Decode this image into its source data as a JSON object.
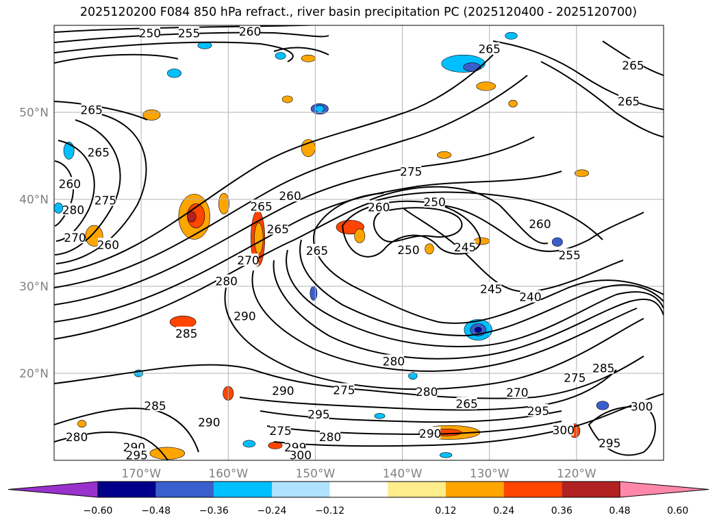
{
  "title": "2025120200 F084 850 hPa refract., river basin precipitation PC (2025120400 - 2025120700)",
  "map": {
    "lon_range": [
      -180,
      -110
    ],
    "lat_range": [
      10,
      60
    ],
    "lon_ticks": [
      {
        "lon": -170,
        "label": "170°W"
      },
      {
        "lon": -160,
        "label": "160°W"
      },
      {
        "lon": -150,
        "label": "150°W"
      },
      {
        "lon": -140,
        "label": "140°W"
      },
      {
        "lon": -130,
        "label": "130°W"
      },
      {
        "lon": -120,
        "label": "120°W"
      }
    ],
    "lat_ticks": [
      {
        "lat": 50,
        "label": "50°N"
      },
      {
        "lat": 40,
        "label": "40°N"
      },
      {
        "lat": 30,
        "label": "30°N"
      },
      {
        "lat": 20,
        "label": "20°N"
      }
    ],
    "contour_labels": [
      {
        "text": "250",
        "lon": -169.0,
        "lat": 59.0
      },
      {
        "text": "255",
        "lon": -164.5,
        "lat": 59.0
      },
      {
        "text": "260",
        "lon": -157.5,
        "lat": 59.2
      },
      {
        "text": "265",
        "lon": -130.0,
        "lat": 57.2
      },
      {
        "text": "265",
        "lon": -113.5,
        "lat": 55.3
      },
      {
        "text": "265",
        "lon": -114.0,
        "lat": 51.2
      },
      {
        "text": "265",
        "lon": -175.7,
        "lat": 50.2
      },
      {
        "text": "265",
        "lon": -174.9,
        "lat": 45.3
      },
      {
        "text": "260",
        "lon": -178.2,
        "lat": 41.7
      },
      {
        "text": "280",
        "lon": -177.8,
        "lat": 38.7
      },
      {
        "text": "275",
        "lon": -174.1,
        "lat": 39.8
      },
      {
        "text": "270",
        "lon": -177.6,
        "lat": 35.5
      },
      {
        "text": "260",
        "lon": -173.8,
        "lat": 34.7
      },
      {
        "text": "265",
        "lon": -156.2,
        "lat": 39.1
      },
      {
        "text": "260",
        "lon": -152.9,
        "lat": 40.3
      },
      {
        "text": "275",
        "lon": -139.0,
        "lat": 43.1
      },
      {
        "text": "265",
        "lon": -154.3,
        "lat": 36.5
      },
      {
        "text": "270",
        "lon": -157.7,
        "lat": 32.9
      },
      {
        "text": "280",
        "lon": -160.2,
        "lat": 30.5
      },
      {
        "text": "260",
        "lon": -142.7,
        "lat": 39.0
      },
      {
        "text": "250",
        "lon": -136.3,
        "lat": 39.6
      },
      {
        "text": "250",
        "lon": -139.3,
        "lat": 34.1
      },
      {
        "text": "245",
        "lon": -132.8,
        "lat": 34.4
      },
      {
        "text": "260",
        "lon": -124.2,
        "lat": 37.1
      },
      {
        "text": "255",
        "lon": -120.8,
        "lat": 33.5
      },
      {
        "text": "265",
        "lon": -149.8,
        "lat": 34.0
      },
      {
        "text": "245",
        "lon": -129.8,
        "lat": 29.6
      },
      {
        "text": "240",
        "lon": -125.3,
        "lat": 28.7
      },
      {
        "text": "290",
        "lon": -158.1,
        "lat": 26.5
      },
      {
        "text": "285",
        "lon": -164.8,
        "lat": 24.5
      },
      {
        "text": "280",
        "lon": -141.0,
        "lat": 21.3
      },
      {
        "text": "290",
        "lon": -153.7,
        "lat": 17.9
      },
      {
        "text": "275",
        "lon": -146.7,
        "lat": 18.0
      },
      {
        "text": "280",
        "lon": -137.2,
        "lat": 17.8
      },
      {
        "text": "265",
        "lon": -132.6,
        "lat": 16.4
      },
      {
        "text": "270",
        "lon": -126.8,
        "lat": 17.7
      },
      {
        "text": "295",
        "lon": -149.6,
        "lat": 15.2
      },
      {
        "text": "285",
        "lon": -168.4,
        "lat": 16.2
      },
      {
        "text": "290",
        "lon": -162.2,
        "lat": 14.3
      },
      {
        "text": "275",
        "lon": -154.0,
        "lat": 13.3
      },
      {
        "text": "280",
        "lon": -148.3,
        "lat": 12.6
      },
      {
        "text": "290",
        "lon": -136.8,
        "lat": 13.0
      },
      {
        "text": "295",
        "lon": -124.4,
        "lat": 15.6
      },
      {
        "text": "300",
        "lon": -121.5,
        "lat": 13.4
      },
      {
        "text": "275",
        "lon": -120.2,
        "lat": 19.4
      },
      {
        "text": "285",
        "lon": -116.9,
        "lat": 20.5
      },
      {
        "text": "300",
        "lon": -112.5,
        "lat": 16.1
      },
      {
        "text": "295",
        "lon": -116.2,
        "lat": 11.9
      },
      {
        "text": "280",
        "lon": -177.4,
        "lat": 12.6
      },
      {
        "text": "290",
        "lon": -170.8,
        "lat": 11.4
      },
      {
        "text": "295",
        "lon": -170.5,
        "lat": 10.5
      },
      {
        "text": "299",
        "lon": -152.3,
        "lat": 11.4
      },
      {
        "text": "300",
        "lon": -151.7,
        "lat": 10.5
      }
    ],
    "contour_color": "#000000",
    "grid_color": "#b0b0b0",
    "label_color": "#808080"
  },
  "colorbar": {
    "under_color": "#9932cc",
    "over_color": "#ff88aa",
    "bins": [
      {
        "from": -0.6,
        "to": -0.48,
        "color": "#00008b"
      },
      {
        "from": -0.48,
        "to": -0.36,
        "color": "#3a5fcd"
      },
      {
        "from": -0.36,
        "to": -0.24,
        "color": "#00bfff"
      },
      {
        "from": -0.24,
        "to": -0.12,
        "color": "#b0e2ff"
      },
      {
        "from": -0.12,
        "to": 0.12,
        "color": "#ffffff"
      },
      {
        "from": 0.12,
        "to": 0.24,
        "color": "#ffec8b"
      },
      {
        "from": 0.24,
        "to": 0.36,
        "color": "#ffa500"
      },
      {
        "from": 0.36,
        "to": 0.48,
        "color": "#ff4500"
      },
      {
        "from": 0.48,
        "to": 0.6,
        "color": "#b22222"
      }
    ],
    "tick_labels": [
      "−0.60",
      "−0.48",
      "−0.36",
      "−0.24",
      "−0.12",
      "0.12",
      "0.24",
      "0.36",
      "0.48",
      "0.60"
    ]
  },
  "precip_patches": [
    {
      "lon": -163.9,
      "lat": 38.0,
      "r": 1.8,
      "ry": 2.6,
      "level": 0.3
    },
    {
      "lon": -163.7,
      "lat": 38.1,
      "r": 1.0,
      "ry": 1.4,
      "level": 0.42
    },
    {
      "lon": -164.2,
      "lat": 38.0,
      "r": 0.5,
      "ry": 0.6,
      "level": 0.55
    },
    {
      "lon": -160.5,
      "lat": 39.5,
      "r": 0.6,
      "ry": 1.2,
      "level": 0.3
    },
    {
      "lon": -156.6,
      "lat": 35.5,
      "r": 0.8,
      "ry": 3.2,
      "level": 0.42
    },
    {
      "lon": -156.5,
      "lat": 35.5,
      "r": 0.5,
      "ry": 1.8,
      "level": 0.3
    },
    {
      "lon": -146.0,
      "lat": 36.8,
      "r": 1.6,
      "ry": 0.8,
      "level": 0.42
    },
    {
      "lon": -144.9,
      "lat": 35.8,
      "r": 0.6,
      "ry": 0.8,
      "level": 0.3
    },
    {
      "lon": -136.9,
      "lat": 34.3,
      "r": 0.5,
      "ry": 0.6,
      "level": 0.3
    },
    {
      "lon": -130.9,
      "lat": 35.2,
      "r": 0.9,
      "ry": 0.4,
      "level": 0.3
    },
    {
      "lon": -165.2,
      "lat": 25.9,
      "r": 1.5,
      "ry": 0.7,
      "level": 0.42
    },
    {
      "lon": -175.4,
      "lat": 35.8,
      "r": 1.0,
      "ry": 1.2,
      "level": 0.3
    },
    {
      "lon": -168.8,
      "lat": 49.7,
      "r": 1.0,
      "ry": 0.6,
      "level": 0.3
    },
    {
      "lon": -150.8,
      "lat": 45.9,
      "r": 0.8,
      "ry": 1.0,
      "level": 0.3
    },
    {
      "lon": -153.2,
      "lat": 51.5,
      "r": 0.6,
      "ry": 0.4,
      "level": 0.3
    },
    {
      "lon": -130.4,
      "lat": 53.0,
      "r": 1.1,
      "ry": 0.5,
      "level": 0.3
    },
    {
      "lon": -135.2,
      "lat": 45.1,
      "r": 0.8,
      "ry": 0.4,
      "level": 0.3
    },
    {
      "lon": -119.4,
      "lat": 43.0,
      "r": 0.8,
      "ry": 0.4,
      "level": 0.3
    },
    {
      "lon": -127.3,
      "lat": 51.0,
      "r": 0.5,
      "ry": 0.4,
      "level": 0.3
    },
    {
      "lon": -134.6,
      "lat": 13.2,
      "r": 3.5,
      "ry": 0.8,
      "level": 0.3
    },
    {
      "lon": -134.9,
      "lat": 13.2,
      "r": 1.7,
      "ry": 0.4,
      "level": 0.42
    },
    {
      "lon": -120.2,
      "lat": 13.4,
      "r": 0.6,
      "ry": 0.8,
      "level": 0.42
    },
    {
      "lon": -167.0,
      "lat": 10.8,
      "r": 2.0,
      "ry": 0.7,
      "level": 0.3
    },
    {
      "lon": -160.0,
      "lat": 17.7,
      "r": 0.6,
      "ry": 0.8,
      "level": 0.42
    },
    {
      "lon": -154.6,
      "lat": 11.7,
      "r": 0.8,
      "ry": 0.4,
      "level": 0.42
    },
    {
      "lon": -176.8,
      "lat": 14.2,
      "r": 0.5,
      "ry": 0.4,
      "level": 0.3
    },
    {
      "lon": -150.8,
      "lat": 56.2,
      "r": 0.8,
      "ry": 0.4,
      "level": 0.3
    },
    {
      "lon": -149.5,
      "lat": 50.4,
      "r": 1.0,
      "ry": 0.6,
      "level": -0.42
    },
    {
      "lon": -149.5,
      "lat": 50.4,
      "r": 0.5,
      "ry": 0.4,
      "level": -0.3
    },
    {
      "lon": -133.0,
      "lat": 55.6,
      "r": 2.5,
      "ry": 1.0,
      "level": -0.3
    },
    {
      "lon": -132.0,
      "lat": 55.2,
      "r": 1.0,
      "ry": 0.5,
      "level": -0.42
    },
    {
      "lon": -131.3,
      "lat": 25.0,
      "r": 1.6,
      "ry": 1.2,
      "level": -0.3
    },
    {
      "lon": -131.3,
      "lat": 25.0,
      "r": 0.9,
      "ry": 0.7,
      "level": -0.42
    },
    {
      "lon": -131.3,
      "lat": 25.0,
      "r": 0.4,
      "ry": 0.3,
      "level": -0.55
    },
    {
      "lon": -178.3,
      "lat": 45.6,
      "r": 0.6,
      "ry": 1.0,
      "level": -0.3
    },
    {
      "lon": -179.5,
      "lat": 39.0,
      "r": 0.5,
      "ry": 0.6,
      "level": -0.3
    },
    {
      "lon": -166.2,
      "lat": 54.5,
      "r": 0.8,
      "ry": 0.5,
      "level": -0.3
    },
    {
      "lon": -162.7,
      "lat": 57.7,
      "r": 0.8,
      "ry": 0.4,
      "level": -0.3
    },
    {
      "lon": -154.0,
      "lat": 56.5,
      "r": 0.6,
      "ry": 0.4,
      "level": -0.3
    },
    {
      "lon": -150.2,
      "lat": 29.2,
      "r": 0.4,
      "ry": 0.8,
      "level": -0.42
    },
    {
      "lon": -122.2,
      "lat": 35.1,
      "r": 0.6,
      "ry": 0.5,
      "level": -0.42
    },
    {
      "lon": -127.5,
      "lat": 58.8,
      "r": 0.7,
      "ry": 0.4,
      "level": -0.3
    },
    {
      "lon": -138.8,
      "lat": 19.7,
      "r": 0.5,
      "ry": 0.4,
      "level": -0.3
    },
    {
      "lon": -117.0,
      "lat": 16.3,
      "r": 0.7,
      "ry": 0.5,
      "level": -0.42
    },
    {
      "lon": -170.3,
      "lat": 20.0,
      "r": 0.5,
      "ry": 0.4,
      "level": -0.3
    },
    {
      "lon": -157.6,
      "lat": 11.9,
      "r": 0.7,
      "ry": 0.4,
      "level": -0.3
    },
    {
      "lon": -135.0,
      "lat": 10.6,
      "r": 0.7,
      "ry": 0.3,
      "level": -0.3
    },
    {
      "lon": -142.6,
      "lat": 15.1,
      "r": 0.6,
      "ry": 0.3,
      "level": -0.3
    }
  ]
}
